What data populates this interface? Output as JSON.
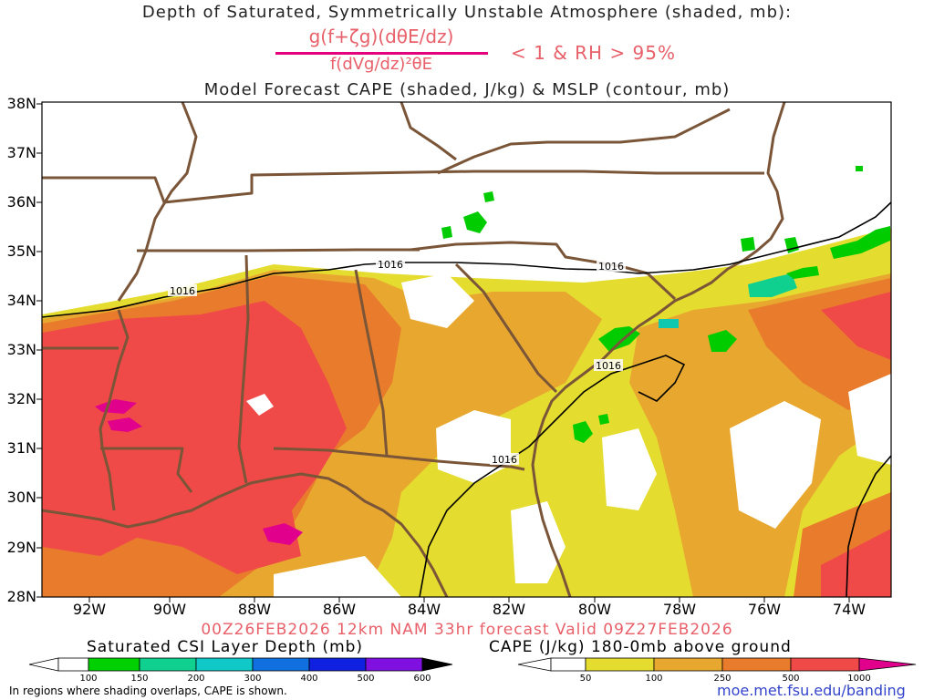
{
  "header": {
    "title_line1": "Depth of Saturated, Symmetrically Unstable Atmosphere (shaded, mb):",
    "numerator": "g(f+ζg)(dθE/dz)",
    "denominator": "f(dVg/dz)²θE",
    "condition": "< 1 & RH > 95%",
    "title_line3": "Model Forecast CAPE (shaded, J/kg) & MSLP (contour, mb)"
  },
  "map": {
    "lat_labels": [
      "38N",
      "37N",
      "36N",
      "35N",
      "34N",
      "33N",
      "32N",
      "31N",
      "30N",
      "29N",
      "28N"
    ],
    "lon_labels": [
      "92W",
      "90W",
      "88W",
      "86W",
      "84W",
      "82W",
      "80W",
      "78W",
      "76W",
      "74W"
    ],
    "isobar_label": "1016",
    "colors": {
      "cape_50": "#e5dc30",
      "cape_100": "#e8a830",
      "cape_250": "#e87c2c",
      "cape_500": "#f04a48",
      "cape_1000": "#e0008c",
      "csi_100": "#00cc00",
      "csi_150": "#10d090",
      "csi_200": "#10c8b0",
      "borders": "#7a5538",
      "isobar": "#000000"
    }
  },
  "footer": {
    "valid_line": "00Z26FEB2026 12km NAM 33hr forecast Valid 09Z27FEB2026",
    "csi_title": "Saturated CSI Layer Depth (mb)",
    "cape_title": "CAPE (J/kg) 180-0mb above ground",
    "csi_ticks": [
      "100",
      "150",
      "200",
      "300",
      "400",
      "500",
      "600"
    ],
    "cape_ticks": [
      "50",
      "100",
      "250",
      "500",
      "1000"
    ],
    "csi_colors": [
      "#00d000",
      "#10d090",
      "#10c8c8",
      "#1070e0",
      "#1020e0",
      "#8010e0",
      "#000000"
    ],
    "cape_colors": [
      "#e5dc30",
      "#e8a830",
      "#e87c2c",
      "#f04a48",
      "#e0008c"
    ],
    "footnote": "In regions where shading overlaps, CAPE is shown.",
    "credit": "moe.met.fsu.edu/banding"
  }
}
